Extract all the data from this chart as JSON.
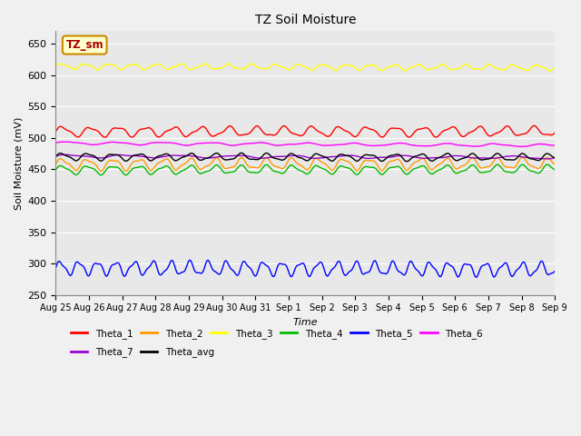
{
  "title": "TZ Soil Moisture",
  "xlabel": "Time",
  "ylabel": "Soil Moisture (mV)",
  "ylim": [
    250,
    670
  ],
  "yticks": [
    250,
    300,
    350,
    400,
    450,
    500,
    550,
    600,
    650
  ],
  "bg_color": "#e8e8e8",
  "fig_bg": "#f0f0f0",
  "label_box_text": "TZ_sm",
  "label_box_bg": "#ffffcc",
  "label_box_edge": "#cc8800",
  "label_box_textcolor": "#aa0000",
  "n_points": 800,
  "n_days": 16,
  "lines": [
    {
      "name": "Theta_1",
      "color": "#ff0000",
      "base": 510,
      "amp": 7,
      "freq": 1.2,
      "trend": 0.5
    },
    {
      "name": "Theta_2",
      "color": "#ff9900",
      "base": 458,
      "amp": 8,
      "freq": 1.3,
      "trend": 1.0
    },
    {
      "name": "Theta_3",
      "color": "#ffff00",
      "base": 614,
      "amp": 4,
      "freq": 1.4,
      "trend": -2.0
    },
    {
      "name": "Theta_4",
      "color": "#00bb00",
      "base": 449,
      "amp": 6,
      "freq": 1.3,
      "trend": 1.0
    },
    {
      "name": "Theta_5",
      "color": "#0000ff",
      "base": 293,
      "amp": 10,
      "freq": 1.8,
      "trend": -2.0
    },
    {
      "name": "Theta_6",
      "color": "#ff00ff",
      "base": 492,
      "amp": 2,
      "freq": 0.7,
      "trend": -4.0
    },
    {
      "name": "Theta_7",
      "color": "#9900cc",
      "base": 471,
      "amp": 2,
      "freq": 0.6,
      "trend": -2.0
    },
    {
      "name": "Theta_avg",
      "color": "#000000",
      "base": 470,
      "amp": 5,
      "freq": 1.3,
      "trend": -1.0
    }
  ],
  "xtick_labels": [
    "Aug 25",
    "Aug 26",
    "Aug 27",
    "Aug 28",
    "Aug 29",
    "Aug 30",
    "Aug 31",
    "Sep 1",
    "Sep 2",
    "Sep 3",
    "Sep 4",
    "Sep 5",
    "Sep 6",
    "Sep 7",
    "Sep 8",
    "Sep 9"
  ],
  "legend_row1": [
    "Theta_1",
    "Theta_2",
    "Theta_3",
    "Theta_4",
    "Theta_5",
    "Theta_6"
  ],
  "legend_row2": [
    "Theta_7",
    "Theta_avg"
  ]
}
